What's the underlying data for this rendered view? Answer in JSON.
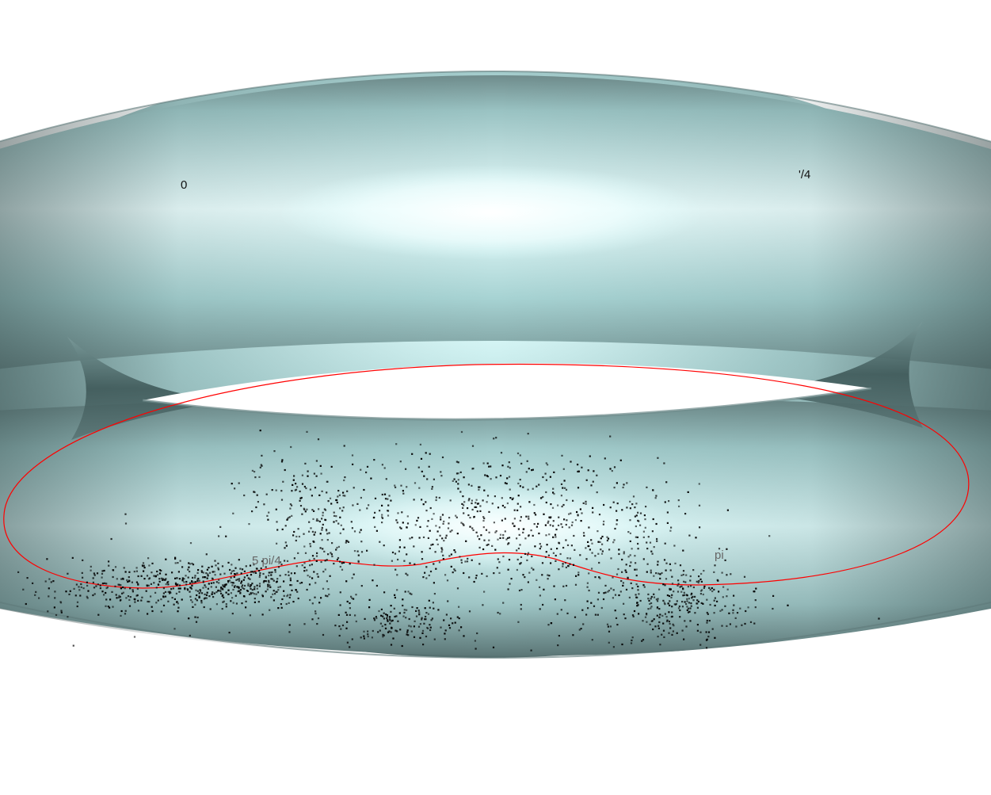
{
  "figure": {
    "surface": "torus",
    "surface_color": "#b4e0e0",
    "highlight_color": "#ffffff",
    "shadow_color": "#3e5656",
    "curve_color": "#ff0000",
    "point_color": "#000000",
    "labels": {
      "zero": "0",
      "quarter": "'/4",
      "five_quarters": "5 pi/4",
      "pi": "pi"
    }
  }
}
